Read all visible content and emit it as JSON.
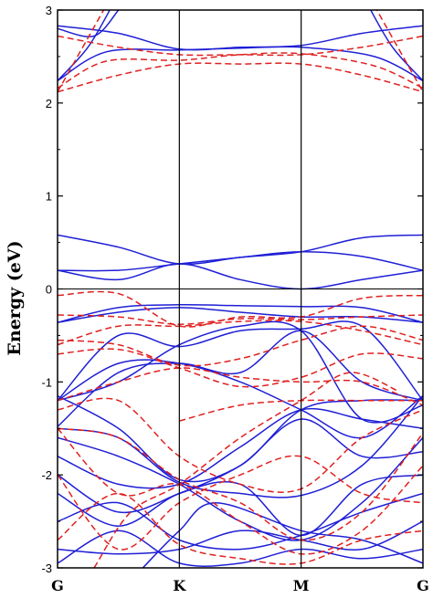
{
  "chart_data": {
    "type": "line",
    "title": "",
    "xlabel": "",
    "ylabel": "Energy (eV)",
    "ylim": [
      -3,
      3
    ],
    "y_ticks": [
      -3,
      -2,
      -1,
      0,
      1,
      2,
      3
    ],
    "y_tick_labels": [
      "-3",
      "-2",
      "-1",
      "0",
      "1",
      "2",
      "3"
    ],
    "k_points": [
      {
        "label": "G",
        "x": 0
      },
      {
        "label": "K",
        "x": 1
      },
      {
        "label": "M",
        "x": 2
      },
      {
        "label": "G",
        "x": 3
      }
    ],
    "fermi_level": 0,
    "grid": false,
    "colors": {
      "solid": "#1f1fd6",
      "dashed": "#e02020"
    },
    "series": [
      {
        "style": "solid",
        "color": "#1f1fd6",
        "bands": [
          [
            [
              0,
              2.83
            ],
            [
              0.5,
              2.75
            ],
            [
              1,
              2.58
            ],
            [
              1.5,
              2.6
            ],
            [
              2,
              2.62
            ],
            [
              2.5,
              2.75
            ],
            [
              3,
              2.83
            ]
          ],
          [
            [
              0,
              2.24
            ],
            [
              0.4,
              2.55
            ],
            [
              1,
              2.57
            ],
            [
              1.5,
              2.59
            ],
            [
              2,
              2.6
            ],
            [
              2.6,
              2.5
            ],
            [
              3,
              2.24
            ]
          ],
          [
            [
              0,
              2.24
            ],
            [
              0.25,
              2.6
            ],
            [
              0.45,
              3.05
            ]
          ],
          [
            [
              2.55,
              3.05
            ],
            [
              2.75,
              2.6
            ],
            [
              3,
              2.24
            ]
          ],
          [
            [
              0,
              2.8
            ],
            [
              0.3,
              2.72
            ],
            [
              0.5,
              3.0
            ]
          ],
          [
            [
              0,
              0.58
            ],
            [
              0.5,
              0.45
            ],
            [
              1,
              0.27
            ],
            [
              1.5,
              0.34
            ],
            [
              2,
              0.4
            ],
            [
              2.5,
              0.55
            ],
            [
              3,
              0.58
            ]
          ],
          [
            [
              0,
              0.2
            ],
            [
              0.5,
              0.2
            ],
            [
              1,
              0.27
            ],
            [
              1.5,
              0.34
            ],
            [
              2,
              0.4
            ],
            [
              2.5,
              0.35
            ],
            [
              3,
              0.2
            ]
          ],
          [
            [
              0,
              0.2
            ],
            [
              0.5,
              0.1
            ],
            [
              1,
              0.27
            ],
            [
              1.5,
              0.1
            ],
            [
              2,
              0.0
            ],
            [
              2.5,
              0.1
            ],
            [
              3,
              0.2
            ]
          ],
          [
            [
              0,
              -0.36
            ],
            [
              0.5,
              -0.2
            ],
            [
              1,
              -0.17
            ],
            [
              1.5,
              -0.18
            ],
            [
              2,
              -0.19
            ],
            [
              2.5,
              -0.2
            ],
            [
              3,
              -0.36
            ]
          ],
          [
            [
              0,
              -0.36
            ],
            [
              0.5,
              -0.25
            ],
            [
              1,
              -0.2
            ],
            [
              1.5,
              -0.25
            ],
            [
              2,
              -0.3
            ],
            [
              2.5,
              -0.3
            ],
            [
              3,
              -0.36
            ]
          ],
          [
            [
              0,
              -1.2
            ],
            [
              0.5,
              -0.5
            ],
            [
              1,
              -0.62
            ],
            [
              1.5,
              -0.45
            ],
            [
              2,
              -0.43
            ],
            [
              2.5,
              -0.4
            ],
            [
              3,
              -1.2
            ]
          ],
          [
            [
              0,
              -1.2
            ],
            [
              0.5,
              -0.8
            ],
            [
              1,
              -0.8
            ],
            [
              1.5,
              -1.0
            ],
            [
              2,
              -1.3
            ],
            [
              2.5,
              -1.6
            ],
            [
              3,
              -1.15
            ]
          ],
          [
            [
              0,
              -1.48
            ],
            [
              0.5,
              -0.9
            ],
            [
              1,
              -0.8
            ],
            [
              1.5,
              -0.9
            ],
            [
              2,
              -0.45
            ],
            [
              2.5,
              -1.0
            ],
            [
              3,
              -1.2
            ]
          ],
          [
            [
              0,
              -1.2
            ],
            [
              0.5,
              -1.0
            ],
            [
              1,
              -0.6
            ],
            [
              1.5,
              -0.4
            ],
            [
              2,
              -0.45
            ],
            [
              2.5,
              -1.4
            ],
            [
              3,
              -1.25
            ]
          ],
          [
            [
              0,
              -1.5
            ],
            [
              0.5,
              -1.6
            ],
            [
              1,
              -2.08
            ],
            [
              1.5,
              -2.2
            ],
            [
              2,
              -2.22
            ],
            [
              2.5,
              -1.9
            ],
            [
              3,
              -1.15
            ]
          ],
          [
            [
              0,
              -1.15
            ],
            [
              0.5,
              -1.5
            ],
            [
              1,
              -2.05
            ],
            [
              1.5,
              -1.9
            ],
            [
              2,
              -1.3
            ],
            [
              2.5,
              -1.2
            ],
            [
              3,
              -1.2
            ]
          ],
          [
            [
              0,
              -1.6
            ],
            [
              0.5,
              -1.8
            ],
            [
              1,
              -2.1
            ],
            [
              1.5,
              -2.5
            ],
            [
              2,
              -2.7
            ],
            [
              2.5,
              -2.3
            ],
            [
              3,
              -1.6
            ]
          ],
          [
            [
              0,
              -1.8
            ],
            [
              0.5,
              -2.1
            ],
            [
              1,
              -2.1
            ],
            [
              1.5,
              -1.7
            ],
            [
              2,
              -1.3
            ],
            [
              2.5,
              -1.4
            ],
            [
              3,
              -1.5
            ]
          ],
          [
            [
              0,
              -2.0
            ],
            [
              0.5,
              -2.4
            ],
            [
              1,
              -2.2
            ],
            [
              1.5,
              -1.9
            ],
            [
              2,
              -1.4
            ],
            [
              2.5,
              -1.8
            ],
            [
              3,
              -1.75
            ]
          ],
          [
            [
              0,
              -2.2
            ],
            [
              0.5,
              -2.55
            ],
            [
              1,
              -2.2
            ],
            [
              1.5,
              -2.1
            ],
            [
              2,
              -2.65
            ],
            [
              2.5,
              -2.1
            ],
            [
              3,
              -2.0
            ]
          ],
          [
            [
              0,
              -2.5
            ],
            [
              0.5,
              -2.3
            ],
            [
              1,
              -2.7
            ],
            [
              1.5,
              -2.8
            ],
            [
              2,
              -2.65
            ],
            [
              2.5,
              -2.4
            ],
            [
              3,
              -2.2
            ]
          ],
          [
            [
              0,
              -2.8
            ],
            [
              0.5,
              -2.85
            ],
            [
              1,
              -2.8
            ],
            [
              1.5,
              -2.6
            ],
            [
              2,
              -2.7
            ],
            [
              2.5,
              -2.8
            ],
            [
              3,
              -2.5
            ]
          ],
          [
            [
              0,
              -2.95
            ],
            [
              0.5,
              -2.6
            ],
            [
              1,
              -2.95
            ],
            [
              1.5,
              -2.95
            ],
            [
              2,
              -2.8
            ],
            [
              2.5,
              -2.9
            ],
            [
              3,
              -2.8
            ]
          ],
          [
            [
              0.7,
              -3.0
            ],
            [
              1,
              -2.6
            ],
            [
              1.3,
              -2.3
            ],
            [
              2,
              -2.6
            ],
            [
              2.5,
              -2.7
            ],
            [
              3,
              -2.95
            ]
          ]
        ]
      },
      {
        "style": "dashed",
        "color": "#e02020",
        "bands": [
          [
            [
              0,
              2.72
            ],
            [
              0.5,
              2.6
            ],
            [
              1,
              2.52
            ],
            [
              1.5,
              2.52
            ],
            [
              2,
              2.52
            ],
            [
              2.5,
              2.6
            ],
            [
              3,
              2.72
            ]
          ],
          [
            [
              0,
              2.16
            ],
            [
              0.4,
              2.45
            ],
            [
              1,
              2.46
            ],
            [
              1.5,
              2.52
            ],
            [
              2,
              2.53
            ],
            [
              2.6,
              2.4
            ],
            [
              3,
              2.16
            ]
          ],
          [
            [
              0,
              2.12
            ],
            [
              0.5,
              2.3
            ],
            [
              1,
              2.42
            ],
            [
              1.5,
              2.42
            ],
            [
              2,
              2.42
            ],
            [
              2.5,
              2.3
            ],
            [
              3,
              2.12
            ]
          ],
          [
            [
              0,
              2.12
            ],
            [
              0.25,
              2.7
            ],
            [
              0.4,
              3.05
            ]
          ],
          [
            [
              2.6,
              3.05
            ],
            [
              2.75,
              2.7
            ],
            [
              3,
              2.12
            ]
          ],
          [
            [
              0,
              -0.07
            ],
            [
              0.5,
              -0.05
            ],
            [
              1,
              -0.4
            ],
            [
              1.5,
              -0.3
            ],
            [
              2,
              -0.3
            ],
            [
              2.5,
              -0.1
            ],
            [
              3,
              -0.07
            ]
          ],
          [
            [
              0,
              -0.28
            ],
            [
              0.5,
              -0.3
            ],
            [
              1,
              -0.38
            ],
            [
              1.5,
              -0.32
            ],
            [
              2,
              -0.33
            ],
            [
              2.5,
              -0.3
            ],
            [
              3,
              -0.28
            ]
          ],
          [
            [
              0,
              -0.6
            ],
            [
              0.5,
              -0.4
            ],
            [
              1,
              -0.4
            ],
            [
              1.5,
              -0.35
            ],
            [
              2,
              -0.35
            ],
            [
              2.5,
              -0.45
            ],
            [
              3,
              -0.6
            ]
          ],
          [
            [
              0,
              -0.55
            ],
            [
              0.5,
              -0.6
            ],
            [
              1,
              -0.82
            ],
            [
              1.5,
              -0.75
            ],
            [
              2,
              -0.55
            ],
            [
              2.5,
              -0.4
            ],
            [
              3,
              -0.55
            ]
          ],
          [
            [
              0,
              -0.7
            ],
            [
              0.5,
              -0.65
            ],
            [
              1,
              -0.85
            ],
            [
              1.5,
              -1.05
            ],
            [
              2,
              -0.95
            ],
            [
              2.5,
              -0.7
            ],
            [
              3,
              -0.75
            ]
          ],
          [
            [
              0,
              -1.2
            ],
            [
              0.5,
              -1.0
            ],
            [
              1,
              -0.85
            ],
            [
              1.5,
              -0.95
            ],
            [
              2,
              -1.0
            ],
            [
              2.5,
              -1.0
            ],
            [
              3,
              -1.25
            ]
          ],
          [
            [
              1,
              -1.42
            ],
            [
              1.5,
              -1.25
            ],
            [
              2,
              -1.2
            ],
            [
              2.5,
              -1.2
            ],
            [
              3,
              -1.2
            ]
          ],
          [
            [
              0,
              -1.3
            ],
            [
              0.5,
              -1.2
            ],
            [
              1,
              -1.8
            ],
            [
              1.5,
              -2.1
            ],
            [
              2,
              -2.15
            ],
            [
              2.5,
              -1.6
            ],
            [
              3,
              -1.3
            ]
          ],
          [
            [
              0,
              -1.5
            ],
            [
              0.5,
              -1.6
            ],
            [
              1,
              -2.05
            ],
            [
              1.5,
              -2.3
            ],
            [
              2,
              -2.7
            ],
            [
              2.5,
              -2.4
            ],
            [
              3,
              -1.55
            ]
          ],
          [
            [
              0,
              -1.5
            ],
            [
              0.5,
              -2.2
            ],
            [
              1,
              -2.1
            ],
            [
              1.5,
              -2.5
            ],
            [
              2,
              -2.85
            ],
            [
              2.5,
              -2.6
            ],
            [
              3,
              -1.9
            ]
          ],
          [
            [
              0,
              -2.0
            ],
            [
              0.5,
              -2.8
            ],
            [
              1,
              -2.3
            ],
            [
              1.5,
              -2.0
            ],
            [
              2,
              -1.8
            ],
            [
              2.5,
              -2.2
            ],
            [
              3,
              -2.3
            ]
          ],
          [
            [
              0,
              -2.7
            ],
            [
              0.5,
              -2.2
            ],
            [
              1,
              -2.75
            ],
            [
              1.5,
              -2.9
            ],
            [
              2,
              -2.95
            ],
            [
              2.5,
              -2.7
            ],
            [
              3,
              -2.6
            ]
          ],
          [
            [
              0.3,
              -3.0
            ],
            [
              0.6,
              -2.4
            ],
            [
              1,
              -2.1
            ],
            [
              1.5,
              -1.6
            ],
            [
              2,
              -1.2
            ],
            [
              2.4,
              -0.9
            ],
            [
              2.8,
              -1.1
            ]
          ]
        ]
      }
    ]
  }
}
